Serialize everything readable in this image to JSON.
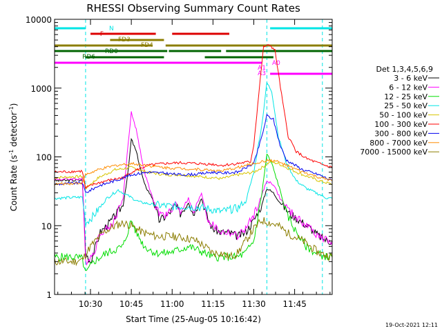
{
  "chart_data": {
    "type": "line",
    "title": "RHESSI Observing Summary Count Rates",
    "xlabel": "Start Time (25-Aug-05 10:16:42)",
    "ylabel_main": "Count Rate (s",
    "ylabel_sup1": "-1",
    "ylabel_mid": " detector",
    "ylabel_sup2": "-1",
    "ylabel_end": ")",
    "yscale": "log",
    "ylim": [
      1,
      10000
    ],
    "xlim_minutes": [
      10.28,
      11.98
    ],
    "x_unit": "hours (decimal, UT)",
    "x_ticks": [
      {
        "t": 10.5,
        "label": "10:30"
      },
      {
        "t": 10.75,
        "label": "10:45"
      },
      {
        "t": 11.0,
        "label": "11:00"
      },
      {
        "t": 11.25,
        "label": "11:15"
      },
      {
        "t": 11.5,
        "label": "11:30"
      },
      {
        "t": 11.75,
        "label": "11:45"
      }
    ],
    "y_ticks": [
      {
        "v": 1,
        "label": "1"
      },
      {
        "v": 10,
        "label": "10"
      },
      {
        "v": 100,
        "label": "100"
      },
      {
        "v": 1000,
        "label": "1000"
      },
      {
        "v": 10000,
        "label": "10000"
      }
    ],
    "legend_title": "Det 1,3,4,5,6,9",
    "series": [
      {
        "name": "3 - 6 keV",
        "color": "#000000",
        "points": [
          [
            10.28,
            45
          ],
          [
            10.45,
            46
          ],
          [
            10.47,
            4
          ],
          [
            10.5,
            3
          ],
          [
            10.56,
            8
          ],
          [
            10.63,
            12
          ],
          [
            10.7,
            20
          ],
          [
            10.73,
            60
          ],
          [
            10.75,
            180
          ],
          [
            10.78,
            120
          ],
          [
            10.83,
            40
          ],
          [
            10.88,
            25
          ],
          [
            10.92,
            12
          ],
          [
            10.97,
            14
          ],
          [
            11.02,
            20
          ],
          [
            11.05,
            15
          ],
          [
            11.1,
            22
          ],
          [
            11.13,
            15
          ],
          [
            11.18,
            25
          ],
          [
            11.22,
            12
          ],
          [
            11.25,
            9
          ],
          [
            11.3,
            8
          ],
          [
            11.35,
            8
          ],
          [
            11.4,
            7
          ],
          [
            11.45,
            8
          ],
          [
            11.5,
            12
          ],
          [
            11.55,
            20
          ],
          [
            11.58,
            35
          ],
          [
            11.62,
            30
          ],
          [
            11.66,
            22
          ],
          [
            11.72,
            15
          ],
          [
            11.78,
            12
          ],
          [
            11.85,
            9
          ],
          [
            11.9,
            7
          ],
          [
            11.95,
            6
          ],
          [
            11.98,
            6
          ]
        ]
      },
      {
        "name": "6 - 12 keV",
        "color": "#ff00ff",
        "points": [
          [
            10.28,
            47
          ],
          [
            10.45,
            48
          ],
          [
            10.47,
            3
          ],
          [
            10.52,
            4
          ],
          [
            10.56,
            8
          ],
          [
            10.63,
            10
          ],
          [
            10.7,
            25
          ],
          [
            10.73,
            150
          ],
          [
            10.75,
            450
          ],
          [
            10.78,
            250
          ],
          [
            10.83,
            60
          ],
          [
            10.88,
            25
          ],
          [
            10.92,
            15
          ],
          [
            10.97,
            14
          ],
          [
            11.02,
            22
          ],
          [
            11.05,
            16
          ],
          [
            11.1,
            25
          ],
          [
            11.13,
            15
          ],
          [
            11.18,
            30
          ],
          [
            11.22,
            12
          ],
          [
            11.25,
            10
          ],
          [
            11.3,
            8
          ],
          [
            11.35,
            8
          ],
          [
            11.4,
            7
          ],
          [
            11.45,
            9
          ],
          [
            11.5,
            14
          ],
          [
            11.55,
            28
          ],
          [
            11.58,
            45
          ],
          [
            11.62,
            40
          ],
          [
            11.66,
            25
          ],
          [
            11.72,
            16
          ],
          [
            11.78,
            12
          ],
          [
            11.85,
            9
          ],
          [
            11.9,
            7
          ],
          [
            11.95,
            6
          ],
          [
            11.98,
            6
          ]
        ]
      },
      {
        "name": "12 - 25 keV",
        "color": "#00dd00",
        "points": [
          [
            10.28,
            3.5
          ],
          [
            10.4,
            3.5
          ],
          [
            10.45,
            3.3
          ],
          [
            10.47,
            2
          ],
          [
            10.52,
            3
          ],
          [
            10.6,
            4
          ],
          [
            10.7,
            5
          ],
          [
            10.75,
            12
          ],
          [
            10.78,
            8
          ],
          [
            10.83,
            5
          ],
          [
            10.9,
            4
          ],
          [
            10.97,
            4
          ],
          [
            11.05,
            4.5
          ],
          [
            11.1,
            5
          ],
          [
            11.15,
            4.5
          ],
          [
            11.2,
            4
          ],
          [
            11.25,
            3.5
          ],
          [
            11.3,
            3.5
          ],
          [
            11.4,
            3.5
          ],
          [
            11.45,
            4
          ],
          [
            11.5,
            6
          ],
          [
            11.55,
            30
          ],
          [
            11.58,
            110
          ],
          [
            11.61,
            80
          ],
          [
            11.65,
            40
          ],
          [
            11.7,
            15
          ],
          [
            11.76,
            8
          ],
          [
            11.82,
            5
          ],
          [
            11.88,
            4
          ],
          [
            11.95,
            3.5
          ],
          [
            11.98,
            3.5
          ]
        ]
      },
      {
        "name": "25 - 50 keV",
        "color": "#00e5e5",
        "points": [
          [
            10.28,
            25
          ],
          [
            10.45,
            26
          ],
          [
            10.47,
            11
          ],
          [
            10.52,
            14
          ],
          [
            10.6,
            25
          ],
          [
            10.67,
            33
          ],
          [
            10.72,
            28
          ],
          [
            10.8,
            22
          ],
          [
            10.9,
            20
          ],
          [
            11.0,
            19
          ],
          [
            11.1,
            19
          ],
          [
            11.2,
            18
          ],
          [
            11.25,
            17
          ],
          [
            11.3,
            16
          ],
          [
            11.4,
            18
          ],
          [
            11.45,
            22
          ],
          [
            11.5,
            60
          ],
          [
            11.55,
            300
          ],
          [
            11.58,
            1200
          ],
          [
            11.61,
            900
          ],
          [
            11.65,
            200
          ],
          [
            11.7,
            80
          ],
          [
            11.76,
            45
          ],
          [
            11.82,
            35
          ],
          [
            11.88,
            30
          ],
          [
            11.95,
            25
          ],
          [
            11.98,
            25
          ]
        ]
      },
      {
        "name": "50 - 100 keV",
        "color": "#d7c400",
        "points": [
          [
            10.28,
            50
          ],
          [
            10.45,
            52
          ],
          [
            10.47,
            35
          ],
          [
            10.55,
            50
          ],
          [
            10.65,
            65
          ],
          [
            10.75,
            70
          ],
          [
            10.85,
            60
          ],
          [
            10.95,
            55
          ],
          [
            11.05,
            55
          ],
          [
            11.15,
            52
          ],
          [
            11.25,
            50
          ],
          [
            11.3,
            48
          ],
          [
            11.4,
            55
          ],
          [
            11.5,
            60
          ],
          [
            11.55,
            70
          ],
          [
            11.6,
            85
          ],
          [
            11.65,
            80
          ],
          [
            11.7,
            70
          ],
          [
            11.8,
            55
          ],
          [
            11.9,
            45
          ],
          [
            11.98,
            40
          ]
        ]
      },
      {
        "name": "100 - 300 keV",
        "color": "#ff0000",
        "points": [
          [
            10.28,
            60
          ],
          [
            10.45,
            62
          ],
          [
            10.47,
            35
          ],
          [
            10.52,
            40
          ],
          [
            10.6,
            45
          ],
          [
            10.7,
            50
          ],
          [
            10.75,
            60
          ],
          [
            10.85,
            75
          ],
          [
            10.95,
            80
          ],
          [
            11.05,
            82
          ],
          [
            11.15,
            80
          ],
          [
            11.25,
            78
          ],
          [
            11.3,
            75
          ],
          [
            11.4,
            80
          ],
          [
            11.48,
            85
          ],
          [
            11.5,
            150
          ],
          [
            11.53,
            800
          ],
          [
            11.56,
            4000
          ],
          [
            11.6,
            4200
          ],
          [
            11.63,
            3500
          ],
          [
            11.67,
            800
          ],
          [
            11.71,
            200
          ],
          [
            11.76,
            120
          ],
          [
            11.82,
            95
          ],
          [
            11.9,
            80
          ],
          [
            11.98,
            70
          ]
        ]
      },
      {
        "name": "300 - 800 keV",
        "color": "#0000ee",
        "points": [
          [
            10.28,
            40
          ],
          [
            10.45,
            42
          ],
          [
            10.47,
            30
          ],
          [
            10.55,
            38
          ],
          [
            10.65,
            45
          ],
          [
            10.75,
            55
          ],
          [
            10.85,
            60
          ],
          [
            10.95,
            58
          ],
          [
            11.05,
            55
          ],
          [
            11.15,
            56
          ],
          [
            11.25,
            60
          ],
          [
            11.3,
            58
          ],
          [
            11.4,
            60
          ],
          [
            11.5,
            80
          ],
          [
            11.55,
            200
          ],
          [
            11.58,
            400
          ],
          [
            11.62,
            350
          ],
          [
            11.66,
            150
          ],
          [
            11.7,
            90
          ],
          [
            11.8,
            65
          ],
          [
            11.9,
            55
          ],
          [
            11.98,
            45
          ]
        ]
      },
      {
        "name": "800 - 7000 keV",
        "color": "#ff8c00",
        "points": [
          [
            10.28,
            40
          ],
          [
            10.45,
            42
          ],
          [
            10.47,
            55
          ],
          [
            10.55,
            65
          ],
          [
            10.65,
            75
          ],
          [
            10.75,
            80
          ],
          [
            10.85,
            75
          ],
          [
            10.95,
            70
          ],
          [
            11.05,
            68
          ],
          [
            11.15,
            66
          ],
          [
            11.25,
            64
          ],
          [
            11.3,
            62
          ],
          [
            11.4,
            70
          ],
          [
            11.5,
            80
          ],
          [
            11.55,
            85
          ],
          [
            11.6,
            90
          ],
          [
            11.65,
            85
          ],
          [
            11.7,
            75
          ],
          [
            11.8,
            60
          ],
          [
            11.9,
            50
          ],
          [
            11.98,
            45
          ]
        ]
      },
      {
        "name": "7000 - 15000 keV",
        "color": "#8b7d00",
        "points": [
          [
            10.28,
            3
          ],
          [
            10.4,
            3
          ],
          [
            10.45,
            3.2
          ],
          [
            10.5,
            5
          ],
          [
            10.58,
            8
          ],
          [
            10.65,
            10
          ],
          [
            10.7,
            11
          ],
          [
            10.75,
            10
          ],
          [
            10.82,
            8
          ],
          [
            10.9,
            7
          ],
          [
            11.0,
            7
          ],
          [
            11.1,
            6.5
          ],
          [
            11.15,
            6
          ],
          [
            11.2,
            5
          ],
          [
            11.25,
            4
          ],
          [
            11.3,
            4
          ],
          [
            11.35,
            3.5
          ],
          [
            11.4,
            4
          ],
          [
            11.45,
            6
          ],
          [
            11.5,
            9
          ],
          [
            11.55,
            12
          ],
          [
            11.6,
            11
          ],
          [
            11.65,
            10
          ],
          [
            11.7,
            8
          ],
          [
            11.8,
            6
          ],
          [
            11.9,
            4
          ],
          [
            11.98,
            3.5
          ]
        ]
      }
    ],
    "flag_bars": [
      {
        "label": "N",
        "color": "#00e5e5",
        "row": 0,
        "segments": [
          [
            10.28,
            10.47
          ],
          [
            11.6,
            11.98
          ]
        ]
      },
      {
        "label": "F",
        "color": "#dd0000",
        "row": 1,
        "segments": [
          [
            10.5,
            10.9
          ],
          [
            11.0,
            11.35
          ]
        ]
      },
      {
        "label": "FD3",
        "color": "#8b7d00",
        "row": 2,
        "segments": [
          [
            10.62,
            10.95
          ]
        ]
      },
      {
        "label": "FD4",
        "color": "#8b7d00",
        "row": 3,
        "segments": [
          [
            10.28,
            10.88
          ],
          [
            10.96,
            11.98
          ]
        ]
      },
      {
        "label": "RD0",
        "color": "#006400",
        "row": 4,
        "segments": [
          [
            10.28,
            10.97
          ],
          [
            10.98,
            11.3
          ],
          [
            11.33,
            11.98
          ]
        ]
      },
      {
        "label": "RD6",
        "color": "#006400",
        "row": 5,
        "segments": [
          [
            10.47,
            10.95
          ],
          [
            11.2,
            11.62
          ]
        ]
      },
      {
        "label": "A0",
        "color": "#ff00ff",
        "row": 6,
        "segments": [
          [
            10.28,
            11.55
          ]
        ]
      },
      {
        "label": "A1",
        "color": "#ff00ff",
        "row": 7,
        "segments": []
      },
      {
        "label": "A3",
        "color": "#ff00ff",
        "row": 8,
        "segments": [
          [
            11.6,
            11.98
          ]
        ]
      }
    ],
    "vlines": [
      {
        "t": 10.47,
        "color": "#00e5e5"
      },
      {
        "t": 11.58,
        "color": "#00e5e5"
      },
      {
        "t": 11.92,
        "color": "#00e5e5"
      }
    ],
    "grid": false,
    "legend_position": "right"
  },
  "timestamp": "19-Oct-2021 12:11"
}
